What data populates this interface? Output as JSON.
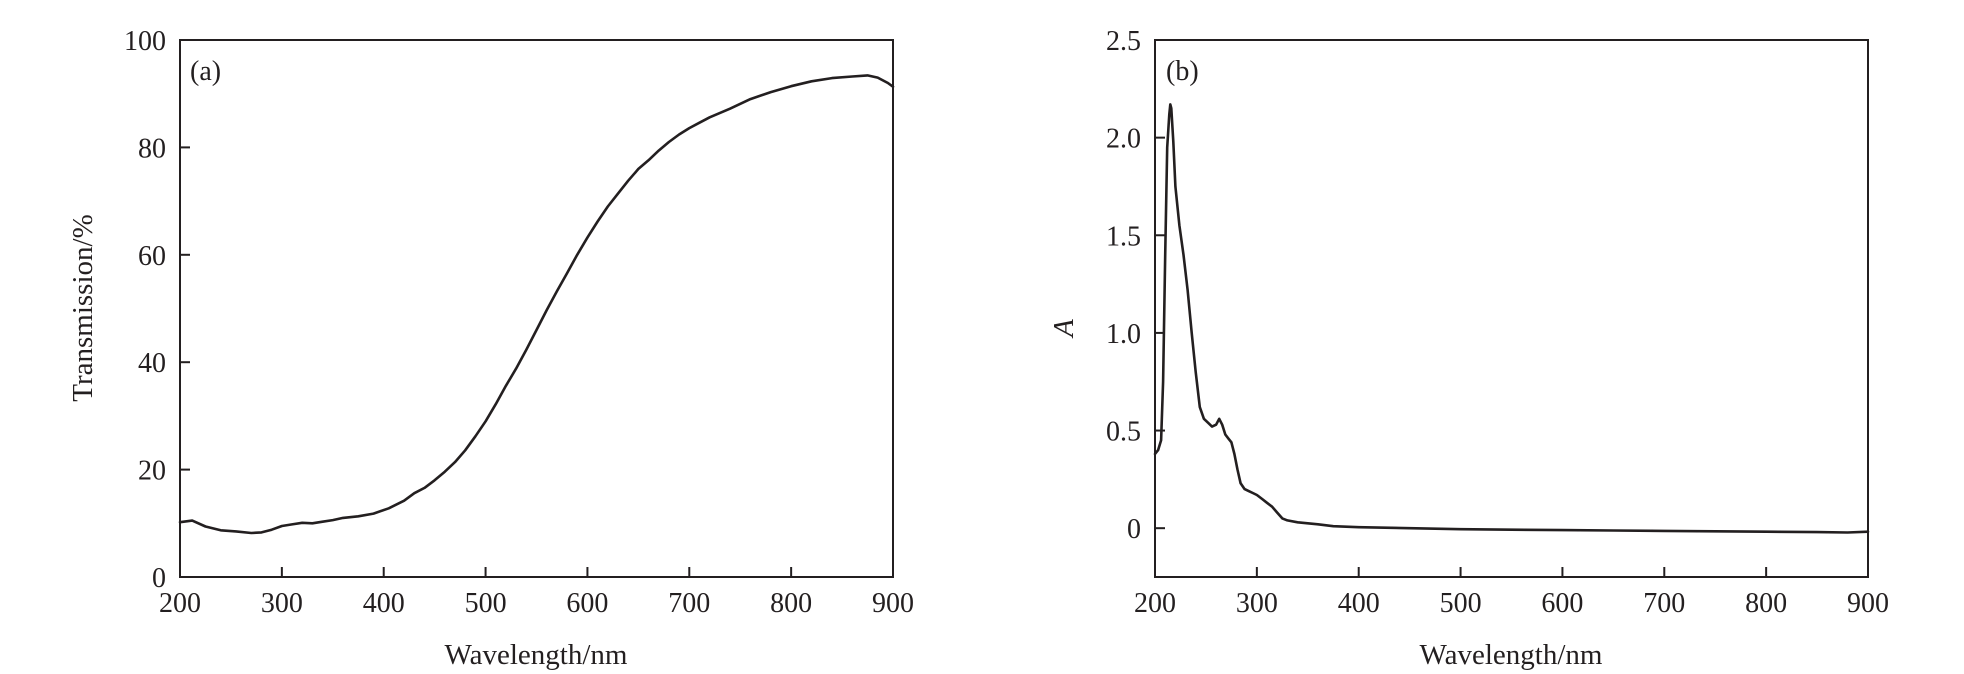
{
  "chart_data": [
    {
      "type": "line",
      "panel_label": "(a)",
      "xlabel": "Wavelength/nm",
      "ylabel": "Transmission/%",
      "xlim": [
        200,
        900
      ],
      "ylim": [
        0,
        100
      ],
      "xticks": [
        200,
        300,
        400,
        500,
        600,
        700,
        800,
        900
      ],
      "yticks": [
        0,
        20,
        40,
        60,
        80,
        100
      ],
      "xtick_labels": [
        "200",
        "300",
        "400",
        "500",
        "600",
        "700",
        "800",
        "900"
      ],
      "ytick_labels": [
        "0",
        "20",
        "40",
        "60",
        "80",
        "100"
      ],
      "grid": false,
      "series": [
        {
          "color": "#231f20",
          "x": [
            200,
            212,
            225,
            240,
            255,
            270,
            280,
            290,
            300,
            310,
            320,
            330,
            340,
            350,
            360,
            375,
            390,
            405,
            420,
            430,
            440,
            450,
            460,
            470,
            480,
            490,
            500,
            510,
            520,
            530,
            540,
            550,
            560,
            570,
            580,
            590,
            600,
            610,
            620,
            630,
            640,
            650,
            660,
            670,
            680,
            690,
            700,
            710,
            720,
            740,
            760,
            780,
            800,
            820,
            840,
            860,
            875,
            885,
            895,
            900
          ],
          "y": [
            10.2,
            10.5,
            9.4,
            8.7,
            8.5,
            8.2,
            8.3,
            8.8,
            9.5,
            9.8,
            10.1,
            10.0,
            10.3,
            10.6,
            11.0,
            11.3,
            11.8,
            12.8,
            14.2,
            15.6,
            16.6,
            18.0,
            19.6,
            21.4,
            23.6,
            26.2,
            29.0,
            32.2,
            35.6,
            38.8,
            42.3,
            46.0,
            49.7,
            53.2,
            56.6,
            60.0,
            63.2,
            66.2,
            69.0,
            71.4,
            73.8,
            76.0,
            77.6,
            79.4,
            81.0,
            82.4,
            83.6,
            84.6,
            85.6,
            87.2,
            89.0,
            90.3,
            91.4,
            92.3,
            92.9,
            93.2,
            93.4,
            93.0,
            92.0,
            91.3
          ]
        }
      ]
    },
    {
      "type": "line",
      "panel_label": "(b)",
      "xlabel": "Wavelength/nm",
      "ylabel": "A",
      "xlim": [
        200,
        900
      ],
      "ylim": [
        -0.25,
        2.5
      ],
      "xticks": [
        200,
        300,
        400,
        500,
        600,
        700,
        800,
        900
      ],
      "yticks": [
        0,
        0.5,
        1.0,
        1.5,
        2.0,
        2.5
      ],
      "xtick_labels": [
        "200",
        "300",
        "400",
        "500",
        "600",
        "700",
        "800",
        "900"
      ],
      "ytick_labels": [
        "0",
        "0.5",
        "1.0",
        "1.5",
        "2.0",
        "2.5"
      ],
      "grid": false,
      "series": [
        {
          "color": "#231f20",
          "x": [
            200,
            203,
            206,
            208,
            210,
            212,
            214,
            215,
            216,
            218,
            220,
            224,
            228,
            232,
            236,
            240,
            244,
            248,
            252,
            256,
            260,
            263,
            266,
            269,
            272,
            275,
            278,
            281,
            284,
            288,
            292,
            296,
            300,
            305,
            310,
            315,
            320,
            325,
            330,
            340,
            350,
            360,
            375,
            400,
            450,
            500,
            550,
            600,
            650,
            700,
            750,
            800,
            850,
            880,
            900
          ],
          "y": [
            0.38,
            0.4,
            0.45,
            0.75,
            1.4,
            1.95,
            2.12,
            2.17,
            2.15,
            1.98,
            1.75,
            1.55,
            1.4,
            1.22,
            1.0,
            0.8,
            0.62,
            0.56,
            0.54,
            0.52,
            0.53,
            0.56,
            0.53,
            0.48,
            0.46,
            0.44,
            0.38,
            0.3,
            0.23,
            0.2,
            0.19,
            0.18,
            0.17,
            0.15,
            0.13,
            0.11,
            0.08,
            0.05,
            0.04,
            0.03,
            0.025,
            0.02,
            0.01,
            0.005,
            0.0,
            -0.005,
            -0.008,
            -0.01,
            -0.012,
            -0.014,
            -0.016,
            -0.018,
            -0.02,
            -0.022,
            -0.018
          ]
        }
      ]
    }
  ]
}
